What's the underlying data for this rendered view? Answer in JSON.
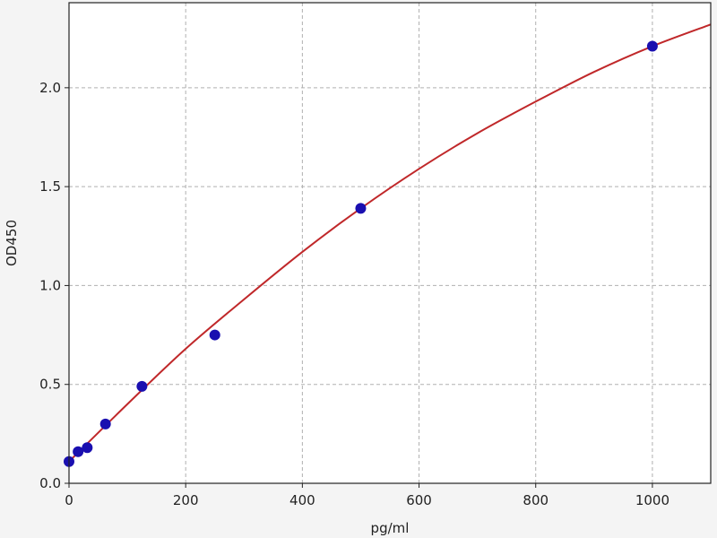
{
  "chart_data": {
    "type": "scatter",
    "title": "",
    "xlabel": "pg/ml",
    "ylabel": "OD450",
    "xlim": [
      0,
      1100
    ],
    "ylim": [
      0,
      2.43
    ],
    "xticks": [
      0,
      200,
      400,
      600,
      800,
      1000
    ],
    "xtick_labels": [
      "0",
      "200",
      "400",
      "600",
      "800",
      "1000"
    ],
    "yticks": [
      0,
      0.5,
      1.0,
      1.5,
      2.0
    ],
    "ytick_labels": [
      "0.0",
      "0.5",
      "1.0",
      "1.5",
      "2.0"
    ],
    "grid": true,
    "points": {
      "x": [
        0,
        15.6,
        31.25,
        62.5,
        125,
        250,
        500,
        1000
      ],
      "y": [
        0.11,
        0.16,
        0.18,
        0.3,
        0.49,
        0.75,
        1.39,
        2.21
      ],
      "color": "#1a0fb0"
    },
    "fit_curve": {
      "x": [
        0,
        100,
        200,
        300,
        400,
        500,
        600,
        700,
        800,
        900,
        1000,
        1100
      ],
      "y": [
        0.11,
        0.4,
        0.68,
        0.93,
        1.17,
        1.39,
        1.59,
        1.77,
        1.93,
        2.08,
        2.21,
        2.32
      ],
      "color": "#c0282a"
    }
  }
}
